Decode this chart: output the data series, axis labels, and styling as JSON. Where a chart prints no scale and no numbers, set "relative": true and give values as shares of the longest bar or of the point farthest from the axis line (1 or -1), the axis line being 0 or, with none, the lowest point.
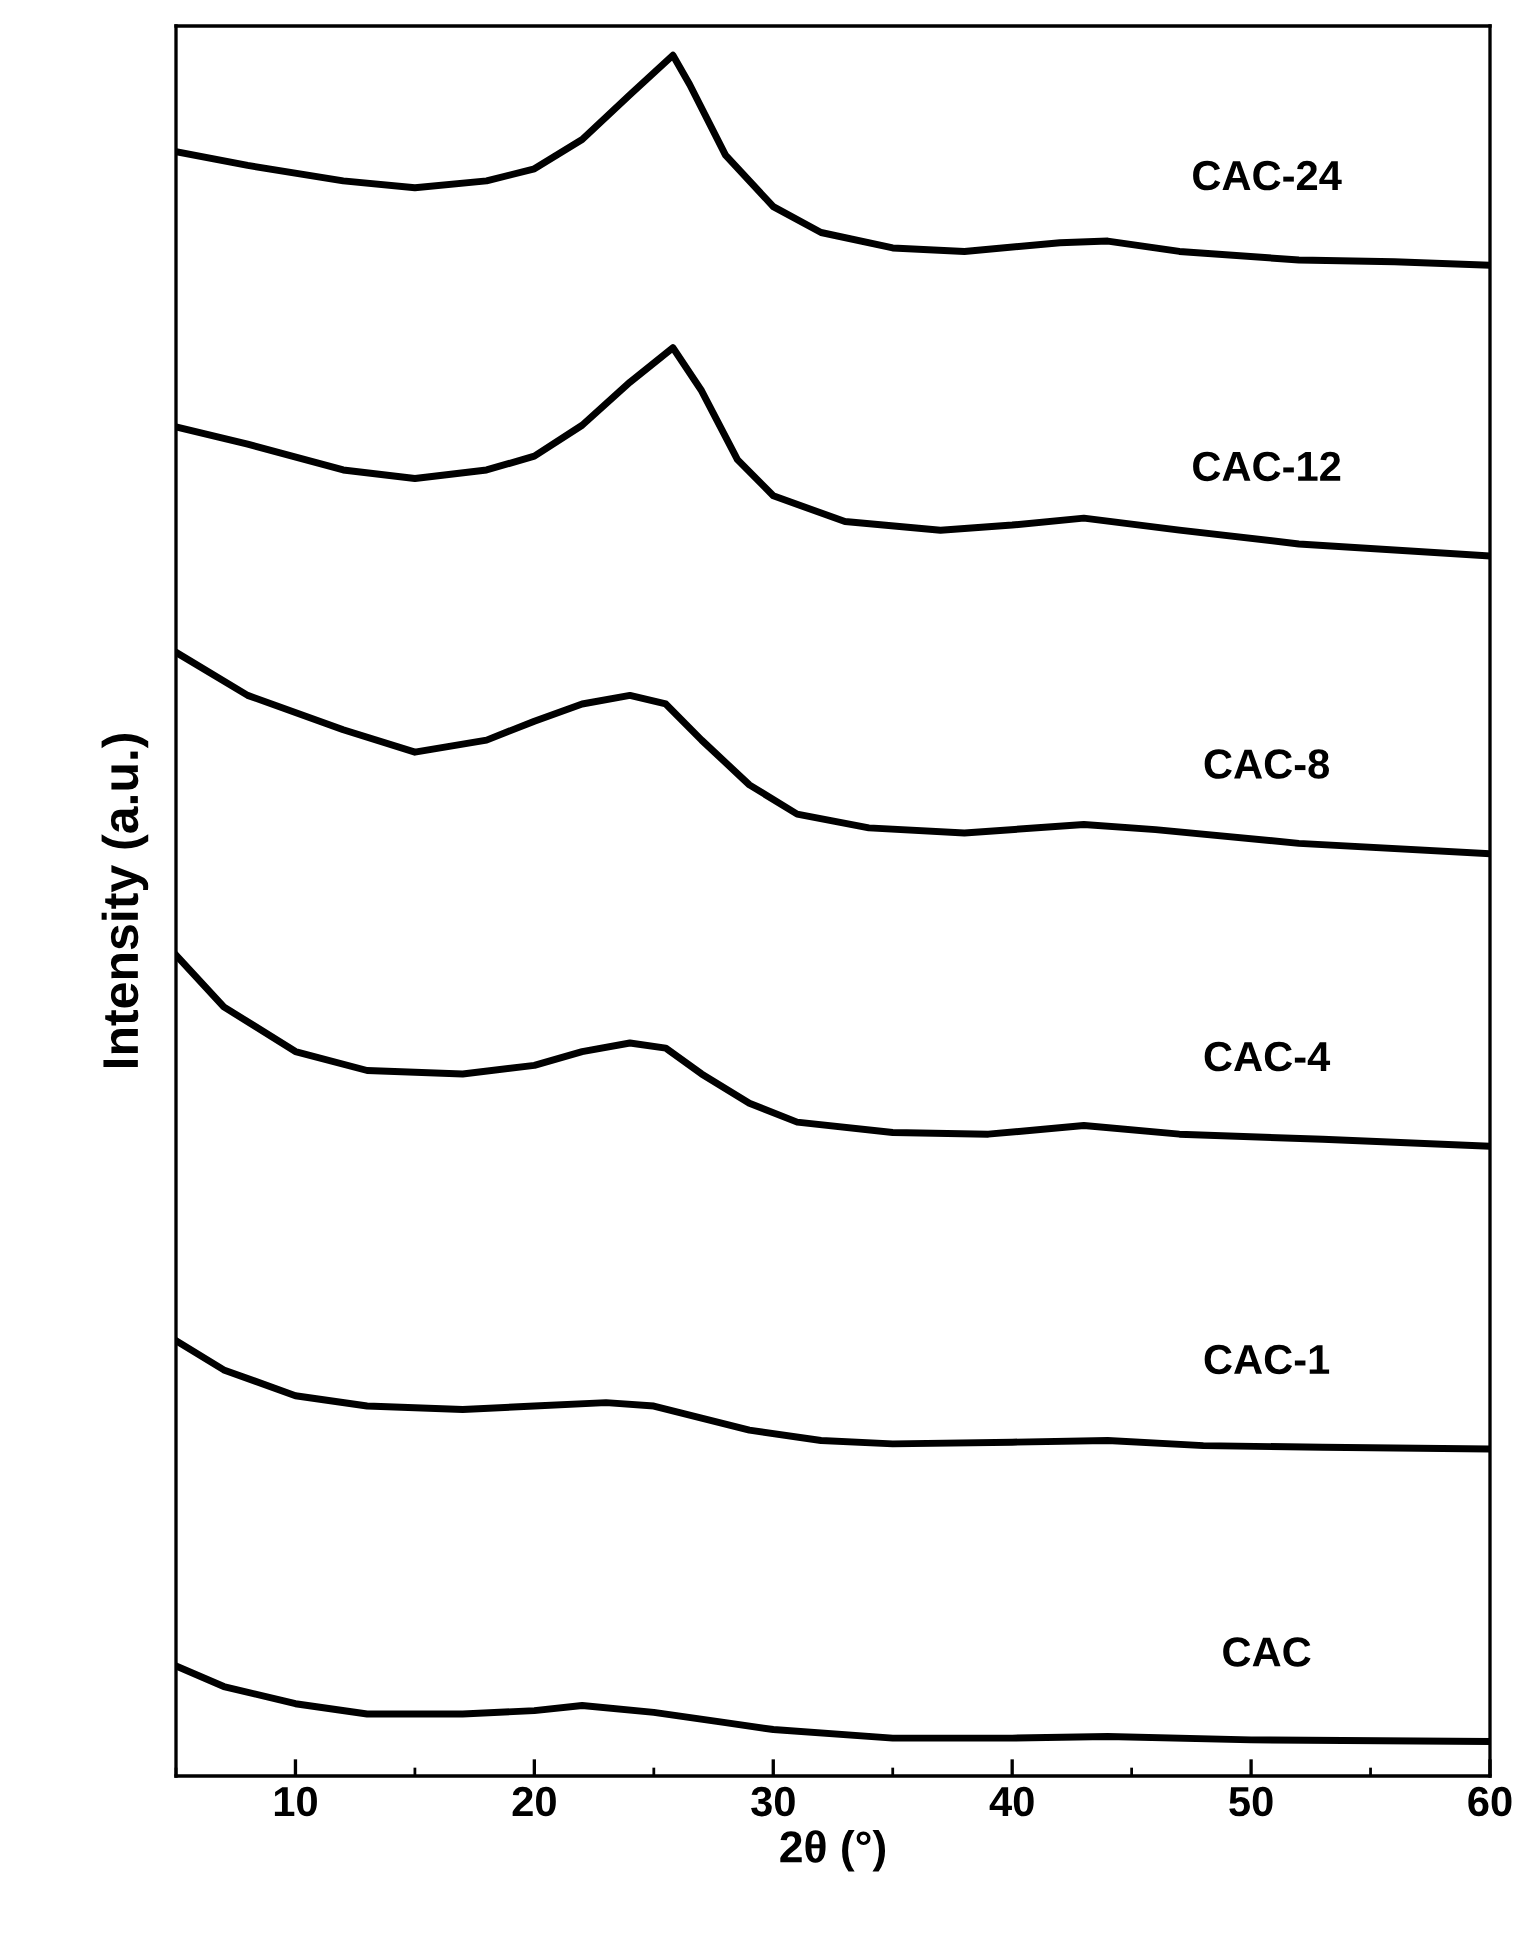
{
  "chart_data": {
    "type": "line",
    "relative": true,
    "xlabel": "2θ (°)",
    "ylabel": "Intensity (a.u.)",
    "xlim": [
      5,
      60
    ],
    "xticks": [
      10,
      20,
      30,
      40,
      50,
      60
    ],
    "tick_labels": "x",
    "grid": false,
    "legend": false,
    "marker": "none",
    "line_style": "solid",
    "series": [
      {
        "name": "CAC-24",
        "color": "#000000",
        "x": [
          5,
          8,
          12,
          15,
          18,
          20,
          22,
          24,
          25.8,
          26.5,
          28,
          30,
          32,
          35,
          38,
          42,
          44,
          47,
          52,
          56,
          60
        ],
        "values": [
          0.944,
          0.936,
          0.927,
          0.923,
          0.927,
          0.934,
          0.951,
          0.977,
          1.0,
          0.983,
          0.942,
          0.912,
          0.897,
          0.888,
          0.886,
          0.891,
          0.892,
          0.886,
          0.881,
          0.88,
          0.878
        ]
      },
      {
        "name": "CAC-12",
        "color": "#000000",
        "x": [
          5,
          8,
          12,
          15,
          18,
          20,
          22,
          24,
          25.8,
          27,
          28.5,
          30,
          33,
          37,
          40,
          43,
          47,
          52,
          60
        ],
        "values": [
          0.784,
          0.774,
          0.759,
          0.754,
          0.759,
          0.767,
          0.785,
          0.81,
          0.83,
          0.805,
          0.765,
          0.744,
          0.729,
          0.724,
          0.727,
          0.731,
          0.724,
          0.716,
          0.709
        ]
      },
      {
        "name": "CAC-8",
        "color": "#000000",
        "x": [
          5,
          8,
          12,
          15,
          18,
          20,
          22,
          24,
          25.5,
          27,
          29,
          31,
          34,
          38,
          43,
          46,
          52,
          60
        ],
        "values": [
          0.653,
          0.628,
          0.608,
          0.595,
          0.602,
          0.613,
          0.623,
          0.628,
          0.623,
          0.602,
          0.576,
          0.559,
          0.551,
          0.548,
          0.553,
          0.55,
          0.542,
          0.536
        ]
      },
      {
        "name": "CAC-4",
        "color": "#000000",
        "x": [
          5,
          7,
          10,
          13,
          17,
          20,
          22,
          24,
          25.5,
          27,
          29,
          31,
          35,
          39,
          43,
          47,
          53,
          60
        ],
        "values": [
          0.477,
          0.447,
          0.421,
          0.41,
          0.408,
          0.413,
          0.421,
          0.426,
          0.423,
          0.408,
          0.391,
          0.38,
          0.374,
          0.373,
          0.378,
          0.373,
          0.37,
          0.366
        ]
      },
      {
        "name": "CAC-1",
        "color": "#000000",
        "x": [
          5,
          7,
          10,
          13,
          17,
          20,
          23,
          25,
          27,
          29,
          32,
          35,
          40,
          44,
          48,
          53,
          60
        ],
        "values": [
          0.253,
          0.236,
          0.221,
          0.215,
          0.213,
          0.215,
          0.217,
          0.215,
          0.208,
          0.201,
          0.195,
          0.193,
          0.194,
          0.195,
          0.192,
          0.191,
          0.19
        ]
      },
      {
        "name": "CAC",
        "color": "#000000",
        "x": [
          5,
          7,
          10,
          13,
          17,
          20,
          22,
          25,
          28,
          30,
          35,
          40,
          44,
          50,
          60
        ],
        "values": [
          0.064,
          0.052,
          0.042,
          0.036,
          0.036,
          0.038,
          0.041,
          0.037,
          0.031,
          0.027,
          0.022,
          0.022,
          0.023,
          0.021,
          0.02
        ]
      }
    ]
  }
}
